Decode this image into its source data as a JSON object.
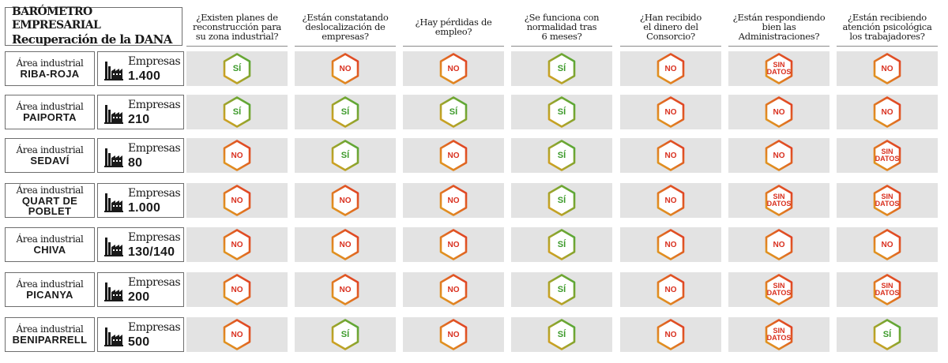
{
  "title": {
    "line1": "BARÓMETRO EMPRESARIAL",
    "line2": "Recuperación de la DANA"
  },
  "questions": [
    "¿Existen planes de\nreconstrucción para\nsu zona industrial?",
    "¿Están constatando\ndeslocalización de\nempresas?",
    "¿Hay pérdidas de\nempleo?",
    "¿Se funciona con\nnormalidad tras\n6 meses?",
    "¿Han recibido\nel dinero del\nConsorcio?",
    "¿Están respondiendo\nbien las\nAdministraciones?",
    "¿Están recibiendo\natención psicológica\nlos trabajadores?"
  ],
  "area_label": "Área industrial",
  "companies_label": "Empresas",
  "answer_labels": {
    "si": "SÍ",
    "no": "NO",
    "sd": "SIN\nDATOS"
  },
  "colors": {
    "si_text": "#3c9a2a",
    "no_text": "#d9301f",
    "si_border_from": "#e0a020",
    "si_border_to": "#4aa83a",
    "no_border_from": "#e0a020",
    "no_border_to": "#e03a25",
    "cell_bg": "#e3e3e3"
  },
  "rows": [
    {
      "area": "RIBA-ROJA",
      "companies": "1.400",
      "answers": [
        "si",
        "no",
        "no",
        "si",
        "no",
        "sd",
        "no"
      ]
    },
    {
      "area": "PAIPORTA",
      "companies": "210",
      "answers": [
        "si",
        "si",
        "si",
        "si",
        "no",
        "no",
        "no"
      ]
    },
    {
      "area": "SEDAVÍ",
      "companies": "80",
      "answers": [
        "no",
        "si",
        "no",
        "si",
        "no",
        "no",
        "sd"
      ]
    },
    {
      "area": "QUART DE\nPOBLET",
      "companies": "1.000",
      "answers": [
        "no",
        "no",
        "no",
        "si",
        "no",
        "sd",
        "sd"
      ]
    },
    {
      "area": "CHIVA",
      "companies": "130/140",
      "answers": [
        "no",
        "no",
        "no",
        "si",
        "no",
        "no",
        "no"
      ]
    },
    {
      "area": "PICANYA",
      "companies": "200",
      "answers": [
        "no",
        "no",
        "no",
        "si",
        "no",
        "sd",
        "sd"
      ]
    },
    {
      "area": "BENIPARRELL",
      "companies": "500",
      "answers": [
        "no",
        "si",
        "no",
        "si",
        "no",
        "sd",
        "si"
      ]
    }
  ]
}
